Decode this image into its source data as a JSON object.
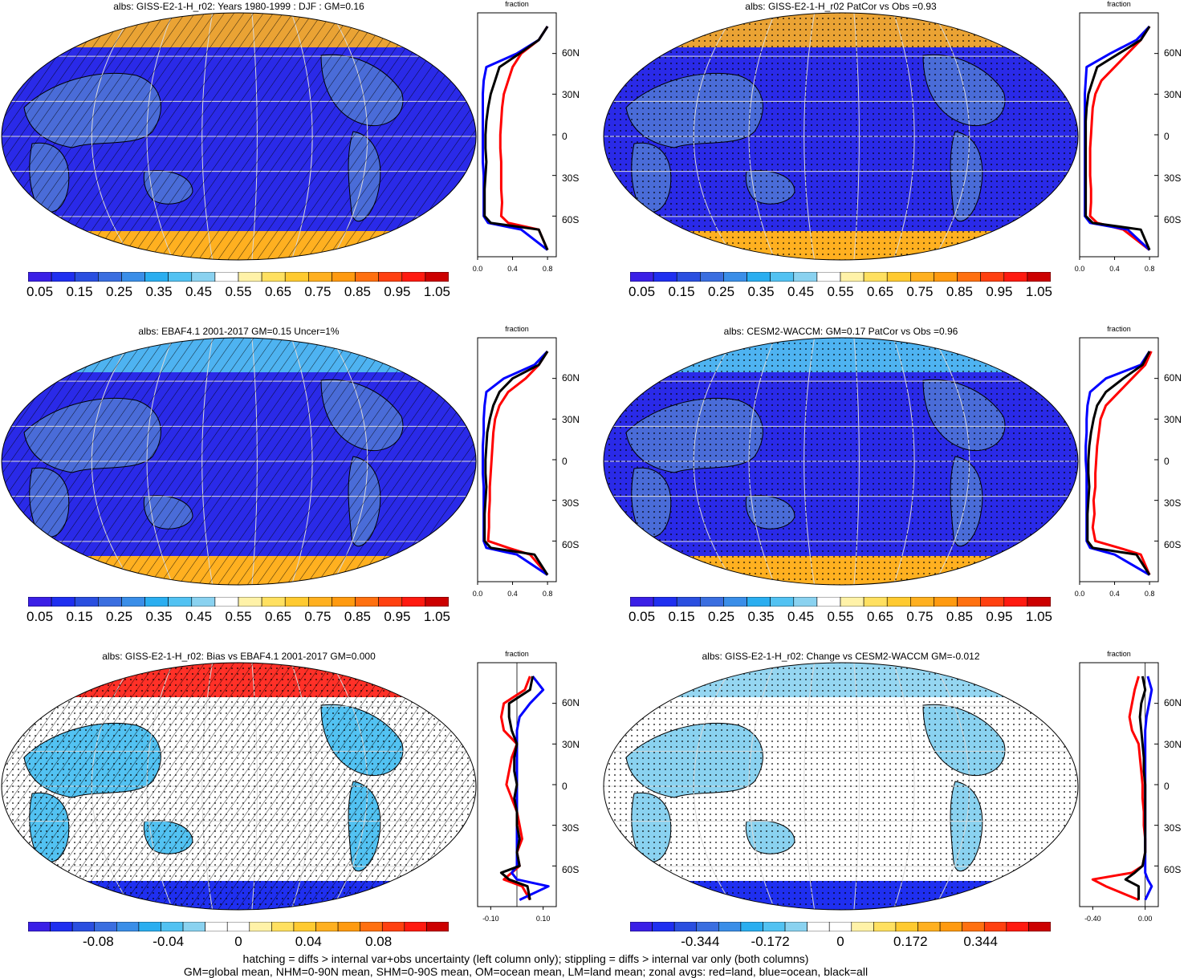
{
  "footer": {
    "line1": "hatching = diffs > internal var+obs uncertainty (left column only); stippling = diffs > internal var only (both columns)",
    "line2": "GM=global mean, NHM=0-90N mean, SHM=0-90S mean, OM=ocean mean, LM=land mean; zonal avgs: red=land, blue=ocean, black=all"
  },
  "lat_labels": [
    "60N",
    "30N",
    "0",
    "30S",
    "60S"
  ],
  "zonal_title": "fraction",
  "colors": {
    "abs_scale": [
      "#3a1fe6",
      "#1f2ff0",
      "#2a4fe0",
      "#3a6ee0",
      "#3a8ee8",
      "#2aaef0",
      "#52c2f2",
      "#8ad2f0",
      "#ffffff",
      "#fff2a8",
      "#ffe060",
      "#ffca30",
      "#ffb020",
      "#ff9a10",
      "#ff7010",
      "#ff4010",
      "#ff1a10",
      "#cc0000"
    ],
    "diff_scale": [
      "#3a1fe6",
      "#1f2ff0",
      "#2a4fe0",
      "#3a6ee0",
      "#3a8ee8",
      "#2aaef0",
      "#52c2f2",
      "#8ad2f0",
      "#ffffff",
      "#ffffff",
      "#fff2a8",
      "#ffe060",
      "#ffca30",
      "#ffb020",
      "#ff9a10",
      "#ff7010",
      "#ff4010",
      "#ff1a10",
      "#cc0000"
    ],
    "land": "#ff0000",
    "ocean": "#0000ff",
    "all": "#000000"
  },
  "panels": [
    {
      "id": "p1",
      "title": "albs: GISS-E2-1-H_r02: Years 1980-1999 : DJF : GM=0.16",
      "kind": "abs",
      "cbar_labels": [
        "0.05",
        "0.15",
        "0.25",
        "0.35",
        "0.45",
        "0.55",
        "0.65",
        "0.75",
        "0.85",
        "0.95",
        "1.05"
      ],
      "zonal_ticks": [
        "0.0",
        "0.4",
        "0.8"
      ]
    },
    {
      "id": "p2",
      "title": "albs: GISS-E2-1-H_r02 PatCor vs Obs =0.93",
      "kind": "abs",
      "cbar_labels": [
        "0.05",
        "0.15",
        "0.25",
        "0.35",
        "0.45",
        "0.55",
        "0.65",
        "0.75",
        "0.85",
        "0.95",
        "1.05"
      ],
      "zonal_ticks": [
        "0.0",
        "0.4",
        "0.8"
      ]
    },
    {
      "id": "p3",
      "title": "albs: EBAF4.1 2001-2017 GM=0.15 Uncer=1%",
      "kind": "abs",
      "cbar_labels": [
        "0.05",
        "0.15",
        "0.25",
        "0.35",
        "0.45",
        "0.55",
        "0.65",
        "0.75",
        "0.85",
        "0.95",
        "1.05"
      ],
      "zonal_ticks": [
        "0.0",
        "0.4",
        "0.8"
      ]
    },
    {
      "id": "p4",
      "title": "albs: CESM2-WACCM: GM=0.17 PatCor vs Obs =0.96",
      "kind": "abs",
      "cbar_labels": [
        "0.05",
        "0.15",
        "0.25",
        "0.35",
        "0.45",
        "0.55",
        "0.65",
        "0.75",
        "0.85",
        "0.95",
        "1.05"
      ],
      "zonal_ticks": [
        "0.0",
        "0.4",
        "0.8"
      ]
    },
    {
      "id": "p5",
      "title": "albs: GISS-E2-1-H_r02: Bias vs EBAF4.1 2001-2017 GM=0.000",
      "kind": "diff",
      "cbar_labels": [
        "-0.08",
        "-0.04",
        "0",
        "0.04",
        "0.08"
      ],
      "zonal_ticks": [
        "-0.10",
        "0.10"
      ]
    },
    {
      "id": "p6",
      "title": "albs: GISS-E2-1-H_r02: Change vs CESM2-WACCM GM=-0.012",
      "kind": "diff",
      "cbar_labels": [
        "-0.344",
        "-0.172",
        "0",
        "0.172",
        "0.344"
      ],
      "zonal_ticks": [
        "-0.40",
        "0.00"
      ]
    }
  ],
  "chart_data": [
    {
      "type": "zonal-line",
      "title": "fraction",
      "panel": "GISS-E2-1-H_r02 DJF 1980-1999",
      "ylim": [
        -90,
        90
      ],
      "xlim": [
        0.0,
        0.9
      ],
      "lat": [
        -85,
        -70,
        -65,
        -60,
        -50,
        -40,
        -30,
        -20,
        -10,
        0,
        10,
        20,
        30,
        40,
        50,
        60,
        70,
        80
      ],
      "series": [
        {
          "name": "land",
          "values": [
            0.8,
            0.7,
            0.35,
            0.27,
            0.28,
            0.27,
            0.27,
            0.27,
            0.26,
            0.26,
            0.27,
            0.28,
            0.3,
            0.35,
            0.4,
            0.5,
            0.7,
            0.8
          ]
        },
        {
          "name": "ocean",
          "values": [
            0.8,
            0.5,
            0.12,
            0.07,
            0.07,
            0.07,
            0.07,
            0.06,
            0.06,
            0.06,
            0.06,
            0.06,
            0.06,
            0.07,
            0.1,
            0.45,
            0.7,
            0.8
          ]
        },
        {
          "name": "all",
          "values": [
            0.8,
            0.7,
            0.15,
            0.08,
            0.08,
            0.08,
            0.09,
            0.1,
            0.09,
            0.09,
            0.1,
            0.12,
            0.15,
            0.2,
            0.25,
            0.48,
            0.7,
            0.8
          ]
        }
      ]
    },
    {
      "type": "zonal-line",
      "title": "fraction",
      "panel": "GISS-E2-1-H_r02 PatCor",
      "ylim": [
        -90,
        90
      ],
      "xlim": [
        0.0,
        0.9
      ],
      "lat": [
        -85,
        -70,
        -65,
        -60,
        -50,
        -40,
        -30,
        -20,
        -10,
        0,
        10,
        20,
        30,
        40,
        50,
        60,
        70,
        80
      ],
      "series": [
        {
          "name": "land",
          "values": [
            0.8,
            0.5,
            0.2,
            0.12,
            0.13,
            0.13,
            0.12,
            0.12,
            0.12,
            0.13,
            0.14,
            0.15,
            0.18,
            0.25,
            0.4,
            0.55,
            0.7,
            0.8
          ]
        },
        {
          "name": "ocean",
          "values": [
            0.8,
            0.55,
            0.12,
            0.06,
            0.06,
            0.06,
            0.06,
            0.06,
            0.06,
            0.06,
            0.06,
            0.06,
            0.06,
            0.07,
            0.08,
            0.35,
            0.65,
            0.8
          ]
        },
        {
          "name": "all",
          "values": [
            0.8,
            0.7,
            0.15,
            0.07,
            0.07,
            0.07,
            0.07,
            0.07,
            0.07,
            0.07,
            0.07,
            0.08,
            0.1,
            0.15,
            0.2,
            0.45,
            0.7,
            0.8
          ]
        }
      ]
    },
    {
      "type": "zonal-line",
      "title": "fraction",
      "panel": "EBAF4.1 2001-2017",
      "ylim": [
        -90,
        90
      ],
      "xlim": [
        0.0,
        0.9
      ],
      "lat": [
        -85,
        -70,
        -65,
        -60,
        -50,
        -40,
        -30,
        -20,
        -10,
        0,
        10,
        20,
        30,
        40,
        50,
        60,
        70,
        80
      ],
      "series": [
        {
          "name": "land",
          "values": [
            0.8,
            0.6,
            0.35,
            0.12,
            0.13,
            0.13,
            0.14,
            0.14,
            0.15,
            0.16,
            0.17,
            0.18,
            0.2,
            0.25,
            0.35,
            0.55,
            0.7,
            0.8
          ]
        },
        {
          "name": "ocean",
          "values": [
            0.8,
            0.45,
            0.1,
            0.07,
            0.07,
            0.07,
            0.07,
            0.07,
            0.06,
            0.06,
            0.06,
            0.07,
            0.07,
            0.08,
            0.1,
            0.3,
            0.65,
            0.8
          ]
        },
        {
          "name": "all",
          "values": [
            0.8,
            0.65,
            0.15,
            0.08,
            0.08,
            0.08,
            0.09,
            0.1,
            0.09,
            0.09,
            0.1,
            0.11,
            0.14,
            0.18,
            0.25,
            0.4,
            0.7,
            0.8
          ]
        }
      ]
    },
    {
      "type": "zonal-line",
      "title": "fraction",
      "panel": "CESM2-WACCM",
      "ylim": [
        -90,
        90
      ],
      "xlim": [
        0.0,
        0.9
      ],
      "lat": [
        -85,
        -70,
        -65,
        -60,
        -50,
        -40,
        -30,
        -20,
        -10,
        0,
        10,
        20,
        30,
        40,
        50,
        60,
        70,
        80
      ],
      "series": [
        {
          "name": "land",
          "values": [
            0.8,
            0.7,
            0.45,
            0.18,
            0.15,
            0.17,
            0.16,
            0.18,
            0.18,
            0.19,
            0.2,
            0.22,
            0.24,
            0.3,
            0.45,
            0.6,
            0.75,
            0.82
          ]
        },
        {
          "name": "ocean",
          "values": [
            0.8,
            0.4,
            0.12,
            0.08,
            0.08,
            0.08,
            0.08,
            0.08,
            0.08,
            0.07,
            0.07,
            0.08,
            0.08,
            0.09,
            0.12,
            0.3,
            0.7,
            0.8
          ]
        },
        {
          "name": "all",
          "values": [
            0.8,
            0.65,
            0.15,
            0.09,
            0.09,
            0.09,
            0.1,
            0.11,
            0.1,
            0.1,
            0.11,
            0.13,
            0.16,
            0.2,
            0.3,
            0.5,
            0.72,
            0.8
          ]
        }
      ]
    },
    {
      "type": "zonal-line",
      "title": "fraction",
      "panel": "Bias vs EBAF4.1",
      "ylim": [
        -90,
        90
      ],
      "xlim": [
        -0.15,
        0.15
      ],
      "lat": [
        -85,
        -75,
        -70,
        -65,
        -60,
        -50,
        -40,
        -30,
        -20,
        -10,
        0,
        10,
        20,
        30,
        40,
        50,
        60,
        70,
        80
      ],
      "series": [
        {
          "name": "land",
          "values": [
            0.05,
            0.02,
            -0.05,
            -0.02,
            0.01,
            0.0,
            0.02,
            0.01,
            0.0,
            -0.02,
            -0.04,
            -0.03,
            -0.02,
            0.0,
            -0.05,
            -0.06,
            -0.05,
            0.03,
            0.05
          ]
        },
        {
          "name": "ocean",
          "values": [
            0.01,
            0.12,
            0.0,
            -0.02,
            0.0,
            0.0,
            0.0,
            0.0,
            0.0,
            0.0,
            0.0,
            0.0,
            0.0,
            0.0,
            0.0,
            0.01,
            0.05,
            0.1,
            0.06
          ]
        },
        {
          "name": "all",
          "values": [
            0.05,
            0.04,
            -0.03,
            -0.06,
            0.01,
            0.0,
            0.01,
            0.0,
            0.0,
            -0.01,
            0.0,
            -0.01,
            -0.01,
            0.0,
            -0.02,
            -0.03,
            -0.03,
            0.05,
            0.06
          ]
        }
      ]
    },
    {
      "type": "zonal-line",
      "title": "fraction",
      "panel": "Change vs CESM2-WACCM",
      "ylim": [
        -90,
        90
      ],
      "xlim": [
        -0.5,
        0.1
      ],
      "lat": [
        -85,
        -75,
        -70,
        -65,
        -60,
        -50,
        -40,
        -30,
        -20,
        -10,
        0,
        10,
        20,
        30,
        40,
        50,
        60,
        70,
        80
      ],
      "series": [
        {
          "name": "land",
          "values": [
            -0.05,
            -0.3,
            -0.4,
            -0.1,
            -0.02,
            0.0,
            0.0,
            -0.01,
            -0.01,
            -0.02,
            -0.02,
            -0.03,
            -0.04,
            -0.05,
            -0.1,
            -0.12,
            -0.1,
            -0.08,
            -0.05
          ]
        },
        {
          "name": "ocean",
          "values": [
            0.0,
            0.05,
            0.02,
            0.0,
            0.0,
            0.0,
            0.0,
            0.0,
            0.0,
            0.0,
            0.0,
            0.0,
            0.0,
            0.0,
            0.0,
            0.01,
            0.03,
            0.05,
            0.02
          ]
        },
        {
          "name": "all",
          "values": [
            -0.05,
            -0.05,
            -0.15,
            -0.08,
            -0.02,
            0.0,
            0.0,
            0.0,
            0.0,
            0.0,
            0.0,
            -0.01,
            -0.01,
            -0.02,
            -0.03,
            -0.04,
            -0.03,
            0.0,
            -0.02
          ]
        }
      ]
    }
  ]
}
